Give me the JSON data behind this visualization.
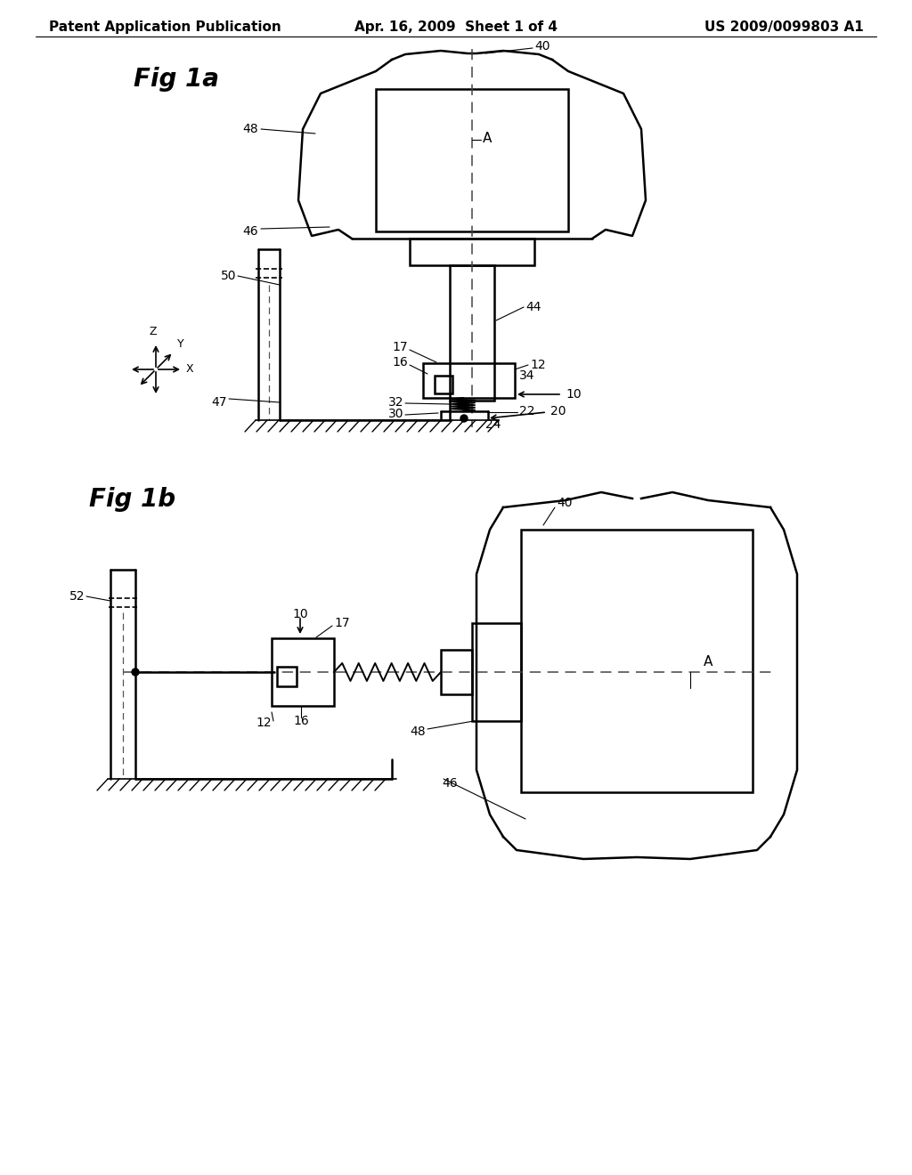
{
  "header_left": "Patent Application Publication",
  "header_mid": "Apr. 16, 2009  Sheet 1 of 4",
  "header_right": "US 2009/0099803 A1",
  "fig1a_label": "Fig 1a",
  "fig1b_label": "Fig 1b",
  "bg_color": "#ffffff",
  "line_color": "#000000",
  "header_fontsize": 11,
  "label_fontsize": 10
}
